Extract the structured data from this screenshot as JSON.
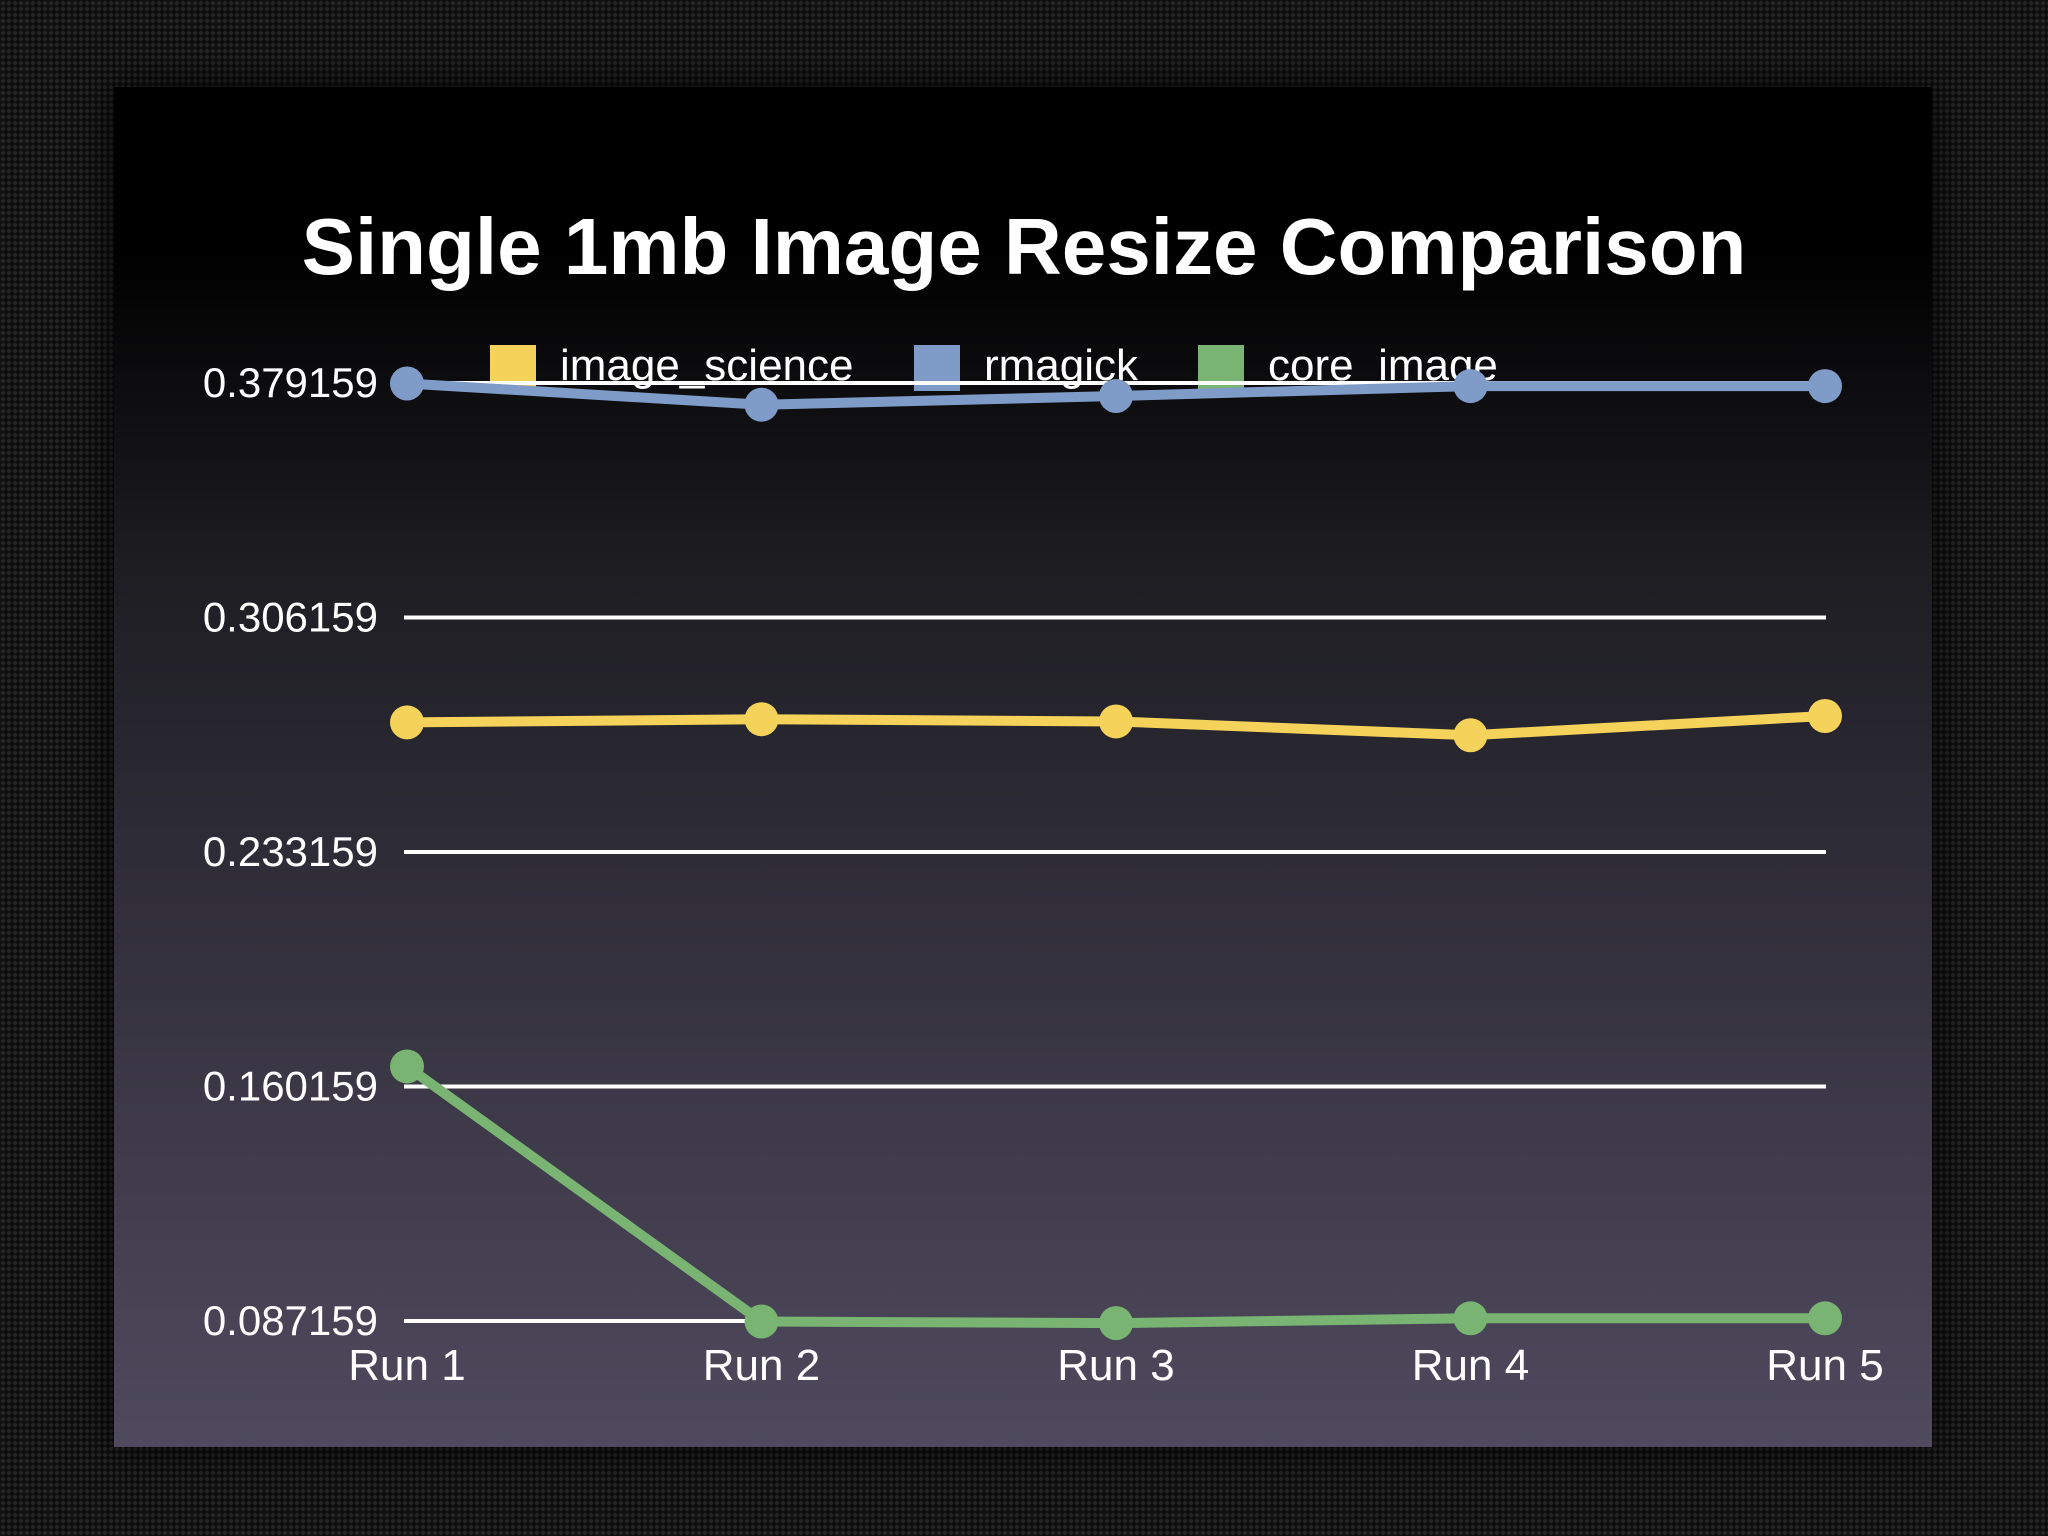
{
  "chart_data": {
    "type": "line",
    "title": "Single 1mb Image Resize Comparison",
    "xlabel": "",
    "ylabel": "",
    "categories": [
      "Run 1",
      "Run 2",
      "Run 3",
      "Run 4",
      "Run 5"
    ],
    "y_ticks": [
      0.087159,
      0.160159,
      0.233159,
      0.306159,
      0.379159
    ],
    "y_tick_labels": [
      "0.087159",
      "0.160159",
      "0.233159",
      "0.306159",
      "0.379159"
    ],
    "ylim": [
      0.087159,
      0.379159
    ],
    "grid": true,
    "legend_position": "top",
    "series": [
      {
        "name": "image_science",
        "color": "#f5d25a",
        "values": [
          0.2735,
          0.2745,
          0.2738,
          0.2695,
          0.2755
        ]
      },
      {
        "name": "rmagick",
        "color": "#7f9cc9",
        "values": [
          0.379,
          0.3724,
          0.3751,
          0.3782,
          0.3782
        ]
      },
      {
        "name": "core_image",
        "color": "#79b472",
        "values": [
          0.1664,
          0.087,
          0.0865,
          0.088,
          0.088
        ]
      }
    ]
  }
}
